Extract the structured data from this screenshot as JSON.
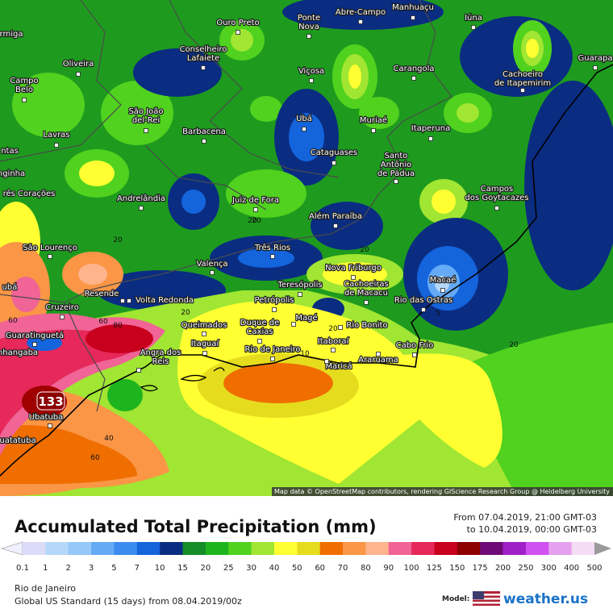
{
  "map": {
    "attribution": "Map data © OpenStreetMap contributors, rendering GIScience Research Group @ Heidelberg University",
    "cities": [
      {
        "lines": [
          "Ouro Preto"
        ]
      },
      {
        "lines": [
          "Ponte",
          "Nova"
        ]
      },
      {
        "lines": [
          "Abre-Campo"
        ]
      },
      {
        "lines": [
          "Manhuaçu"
        ]
      },
      {
        "lines": [
          "Iúna"
        ]
      },
      {
        "lines": [
          "Cachoeiro",
          "de Itapemirim"
        ]
      },
      {
        "lines": [
          "Guarapa"
        ]
      },
      {
        "lines": [
          "rmiga"
        ]
      },
      {
        "lines": [
          "Oliveira"
        ]
      },
      {
        "lines": [
          "Conselheiro",
          "Lafaiete"
        ]
      },
      {
        "lines": [
          "Viçosa"
        ]
      },
      {
        "lines": [
          "Carangola"
        ]
      },
      {
        "lines": [
          "Campo",
          "Belo"
        ]
      },
      {
        "lines": [
          "São João",
          "del-Rei"
        ]
      },
      {
        "lines": [
          "Barbacena"
        ]
      },
      {
        "lines": [
          "Ubá"
        ]
      },
      {
        "lines": [
          "Muriaé"
        ]
      },
      {
        "lines": [
          "Itaperuna"
        ]
      },
      {
        "lines": [
          "Lavras"
        ]
      },
      {
        "lines": [
          "ntas"
        ]
      },
      {
        "lines": [
          "Cataguases"
        ]
      },
      {
        "lines": [
          "Santo",
          "Antônio",
          "de Pádua"
        ]
      },
      {
        "lines": [
          "nginha"
        ]
      },
      {
        "lines": [
          "rês Corações"
        ]
      },
      {
        "lines": [
          "Andrelândia"
        ]
      },
      {
        "lines": [
          "Juiz de Fora"
        ]
      },
      {
        "lines": [
          "Campos",
          "dos Goytacazes"
        ]
      },
      {
        "lines": [
          "Além Paraíba"
        ]
      },
      {
        "lines": [
          "São Lourenço"
        ]
      },
      {
        "lines": [
          "Três Rios"
        ]
      },
      {
        "lines": [
          "Valença"
        ]
      },
      {
        "lines": [
          "Nova Friburgo"
        ]
      },
      {
        "lines": [
          "Cachoeiras",
          "de Macacu"
        ]
      },
      {
        "lines": [
          "Teresópolis"
        ]
      },
      {
        "lines": [
          "Macaé"
        ]
      },
      {
        "lines": [
          "ubá"
        ]
      },
      {
        "lines": [
          "Resende"
        ]
      },
      {
        "lines": [
          "Volta Redonda"
        ]
      },
      {
        "lines": [
          "Petrópolis"
        ]
      },
      {
        "lines": [
          "Rio das Ostras"
        ]
      },
      {
        "lines": [
          "Cruzeiro"
        ]
      },
      {
        "lines": [
          "Magé"
        ]
      },
      {
        "lines": [
          "Rio Bonito"
        ]
      },
      {
        "lines": [
          "Queimados"
        ]
      },
      {
        "lines": [
          "Duque de",
          "Caxias"
        ]
      },
      {
        "lines": [
          "Guaratinguetá"
        ]
      },
      {
        "lines": [
          "Itaboraí"
        ]
      },
      {
        "lines": [
          "Itaguaí"
        ]
      },
      {
        "lines": [
          "Cabo Frio"
        ]
      },
      {
        "lines": [
          "Angra dos",
          "Reis"
        ]
      },
      {
        "lines": [
          "Rio de Janeiro"
        ]
      },
      {
        "lines": [
          "nhangaba"
        ]
      },
      {
        "lines": [
          "Araruama"
        ]
      },
      {
        "lines": [
          "Maricá"
        ]
      },
      {
        "lines": [
          "Ubatuba"
        ]
      },
      {
        "lines": [
          "uatatuba"
        ]
      }
    ],
    "contour_labels": [
      "20",
      "20",
      "20",
      "20",
      "20",
      "20",
      "60",
      "60",
      "80",
      "40",
      "60",
      "10",
      "5",
      "20"
    ],
    "max_label": "133"
  },
  "legend": {
    "title": "Accumulated Total Precipitation (mm)",
    "from": "From 07.04.2019, 21:00 GMT-03",
    "to": "to 10.04.2019, 00:00 GMT-03",
    "ticks": [
      "0.1",
      "1",
      "2",
      "3",
      "5",
      "7",
      "10",
      "15",
      "20",
      "25",
      "30",
      "40",
      "50",
      "60",
      "70",
      "80",
      "90",
      "100",
      "125",
      "150",
      "175",
      "200",
      "250",
      "300",
      "400",
      "500"
    ],
    "colors": [
      "#dcdcf8",
      "#b4d7fa",
      "#96c8fa",
      "#64aaf5",
      "#3c8cf0",
      "#1464dc",
      "#0a2d82",
      "#148c28",
      "#1eb41e",
      "#50d21e",
      "#a0e632",
      "#ffff32",
      "#e6dc1e",
      "#f06e00",
      "#fa9646",
      "#ffb48c",
      "#f06496",
      "#e6285a",
      "#c8001e",
      "#8c0000",
      "#6e0a78",
      "#a020c8",
      "#d050f0",
      "#e6a0f0",
      "#f5dcf5"
    ],
    "end_colors": [
      "#f0f0ff",
      "#9a9a9a"
    ]
  },
  "footer": {
    "region": "Rio de Janeiro",
    "model_run": "Global US Standard (15 days) from 08.04.2019/00z",
    "model_label": "Model:",
    "brand": "weather.us"
  }
}
